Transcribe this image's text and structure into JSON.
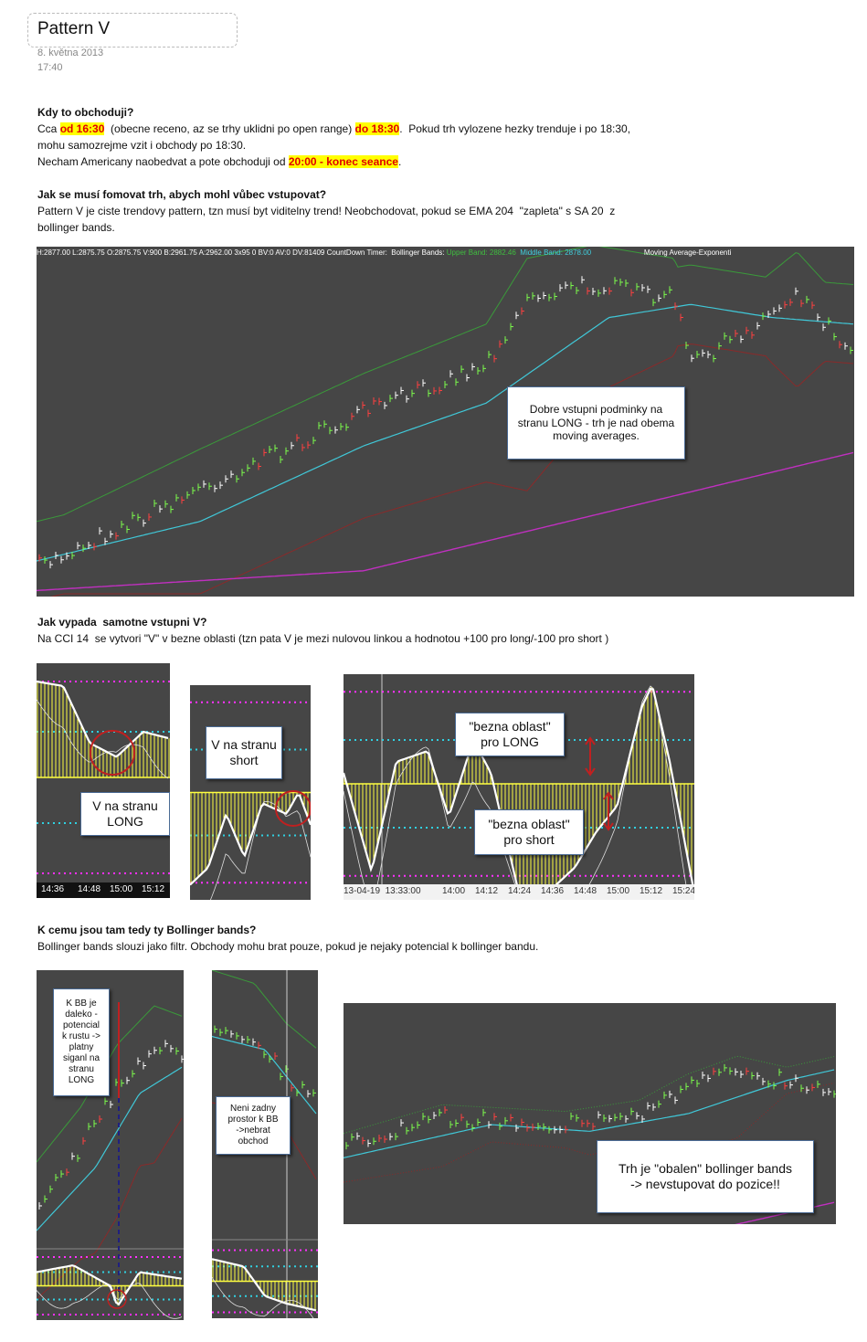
{
  "header": {
    "title": "Pattern V",
    "date": "8. května 2013",
    "time": "17:40"
  },
  "sections": [
    {
      "heading": "Kdy to obchoduji?",
      "lines": [
        [
          {
            "text": "Cca "
          },
          {
            "text": "od 16:30",
            "style": "hl"
          },
          {
            "text": "  (obecne receno, az se trhy uklidni po open range) "
          },
          {
            "text": "do 18:30",
            "style": "hl"
          },
          {
            "text": ".  Pokud trh vylozene hezky trenduje i po 18:30,"
          }
        ],
        [
          {
            "text": "mohu samozrejme vzit i obchody po 18:30."
          }
        ],
        [
          {
            "text": "Necham Americany naobedvat a pote obchoduji od "
          },
          {
            "text": "20:00 - konec seance",
            "style": "hl"
          },
          {
            "text": "."
          }
        ]
      ]
    },
    {
      "heading": "Jak se musí fomovat trh, abych mohl vůbec vstupovat?",
      "lines": [
        [
          {
            "text": "Pattern V je ciste trendovy pattern, tzn musí byt viditelny trend! Neobchodovat, pokud se EMA 204  \"zapleta\" s SA 20  z"
          }
        ],
        [
          {
            "text": "bollinger bands."
          }
        ]
      ]
    },
    {
      "heading": "Jak vypada  samotne vstupni V?",
      "lines": [
        [
          {
            "text": "Na CCI 14  se vytvori \"V\" v bezne oblasti (tzn pata V je mezi nulovou linkou a hodnotou +100 pro long/-100 pro short )"
          }
        ]
      ]
    },
    {
      "heading": "K cemu jsou tam tedy ty Bollinger bands?",
      "lines": [
        [
          {
            "text": "Bollinger bands slouzi jako filtr. Obchody mohu brat pouze, pokud je nejaky potencial k bollinger bandu."
          }
        ]
      ]
    }
  ],
  "figures": [
    {
      "legend": [
        {
          "text": "H:2877.00 L:2875.75 O:2875.75 V:900 B:2961.75 A:2962.00 3x95 0 BV:0 AV:0 DV:81409 CountDown Timer:  Bollinger Bands: ",
          "color": "#ffffff"
        },
        {
          "text": "Upper Band: 2882.46",
          "color": "#3fbf3f"
        },
        {
          "text": "  Middle Band: 2878.00",
          "color": "#40d0e0"
        },
        {
          "text": "                          Moving Average-Exponenti",
          "color": "#ffffff"
        }
      ],
      "callouts": [
        [
          "Dobre vstupni podminky na",
          "stranu LONG - trh je nad obema",
          "moving averages."
        ]
      ]
    },
    {
      "callouts": [
        [
          "V na stranu",
          "LONG"
        ]
      ],
      "times": [
        "14:36",
        "14:48",
        "15:00",
        "15:12"
      ]
    },
    {
      "callouts": [
        [
          "V na stranu",
          "short"
        ]
      ]
    },
    {
      "callouts": [
        [
          "\"bezna oblast\"",
          "pro LONG"
        ],
        [
          "\"bezna oblast\"",
          "pro short"
        ]
      ],
      "times": [
        "13-04-19  13:33:00",
        "14:00",
        "14:12",
        "14:24",
        "14:36",
        "14:48",
        "15:00",
        "15:12",
        "15:24"
      ]
    },
    {
      "callouts": [
        [
          "K BB je",
          "daleko -",
          "potencial",
          "k rustu ->",
          "platny",
          "siganl na",
          "stranu",
          "LONG"
        ]
      ]
    },
    {
      "callouts": [
        [
          "Neni zadny",
          "prostor k BB",
          "->nebrat",
          "obchod"
        ]
      ]
    },
    {
      "callouts": [
        [
          "Trh je \"obalen\" bollinger bands",
          "-> nevstupovat do pozice!!"
        ]
      ]
    }
  ]
}
